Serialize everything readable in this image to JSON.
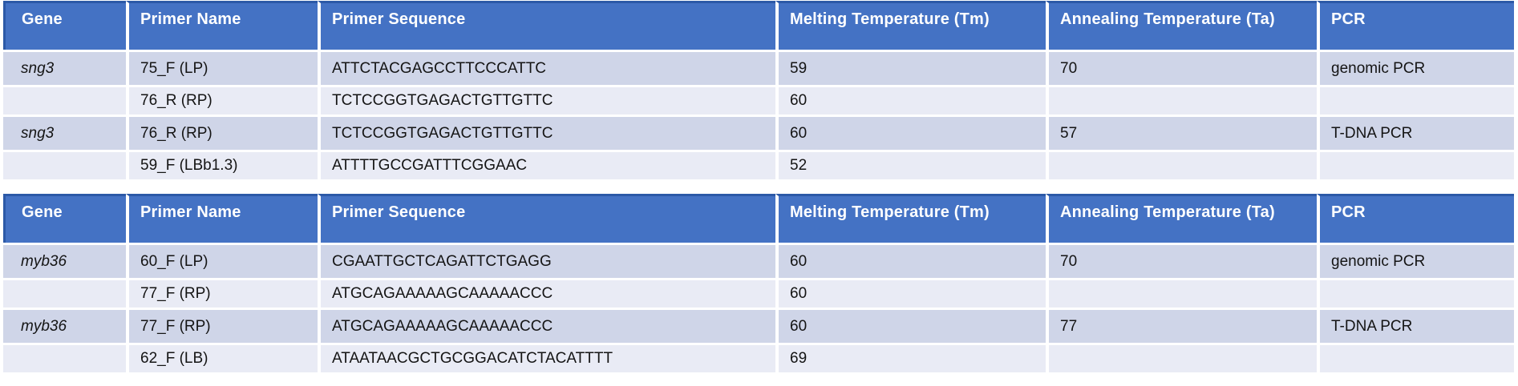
{
  "colors": {
    "header_bg": "#4472C4",
    "header_outline": "#2C59A7",
    "band_dark": "#CFD5E8",
    "band_light": "#E9EBF5",
    "separator": "#FFFFFF",
    "header_text": "#FFFFFF",
    "body_text": "#141414"
  },
  "tables": [
    {
      "headers": [
        "Gene",
        "Primer Name",
        "Primer Sequence",
        "Melting Temperature (Tm)",
        "Annealing Temperature (Ta)",
        "PCR"
      ],
      "rows": [
        {
          "gene": "sng3",
          "primer_name": "75_F (LP)",
          "sequence": "ATTCTACGAGCCTTCCCATTC",
          "tm": "59",
          "ta": "70",
          "pcr": "genomic PCR"
        },
        {
          "gene": "",
          "primer_name": "76_R (RP)",
          "sequence": "TCTCCGGTGAGACTGTTGTTC",
          "tm": "60",
          "ta": "",
          "pcr": ""
        },
        {
          "gene": "sng3",
          "primer_name": "76_R (RP)",
          "sequence": "TCTCCGGTGAGACTGTTGTTC",
          "tm": "60",
          "ta": "57",
          "pcr": "T-DNA PCR"
        },
        {
          "gene": "",
          "primer_name": "59_F (LBb1.3)",
          "sequence": "ATTTTGCCGATTTCGGAAC",
          "tm": "52",
          "ta": "",
          "pcr": ""
        }
      ]
    },
    {
      "headers": [
        "Gene",
        "Primer Name",
        "Primer Sequence",
        "Melting Temperature (Tm)",
        "Annealing Temperature (Ta)",
        "PCR"
      ],
      "rows": [
        {
          "gene": "myb36",
          "primer_name": "60_F (LP)",
          "sequence": "CGAATTGCTCAGATTCTGAGG",
          "tm": "60",
          "ta": "70",
          "pcr": "genomic PCR"
        },
        {
          "gene": "",
          "primer_name": "77_F (RP)",
          "sequence": "ATGCAGAAAAAGCAAAAACCC",
          "tm": "60",
          "ta": "",
          "pcr": ""
        },
        {
          "gene": "myb36",
          "primer_name": "77_F (RP)",
          "sequence": "ATGCAGAAAAAGCAAAAACCC",
          "tm": "60",
          "ta": "77",
          "pcr": "T-DNA PCR"
        },
        {
          "gene": "",
          "primer_name": "62_F (LB)",
          "sequence": "ATAATAACGCTGCGGACATCTACATTTT",
          "tm": "69",
          "ta": "",
          "pcr": ""
        }
      ]
    }
  ]
}
